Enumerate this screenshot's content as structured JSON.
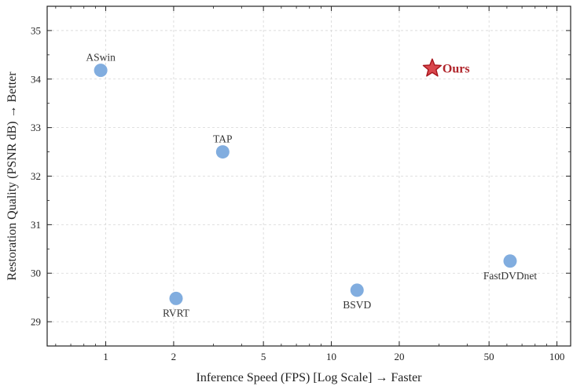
{
  "chart_data": {
    "type": "scatter",
    "title": "",
    "xlabel": "Inference Speed (FPS) [Log Scale]  → Faster",
    "ylabel": "Restoration Quality (PSNR dB)  → Better",
    "xscale": "log",
    "xlim": [
      0.55,
      115
    ],
    "ylim": [
      28.5,
      35.5
    ],
    "xticks": [
      1,
      2,
      5,
      10,
      20,
      50,
      100
    ],
    "xtick_labels": [
      "1",
      "2",
      "5",
      "10",
      "20",
      "50",
      "100"
    ],
    "yticks": [
      29,
      30,
      31,
      32,
      33,
      34,
      35
    ],
    "ytick_labels": [
      "29",
      "30",
      "31",
      "32",
      "33",
      "34",
      "35"
    ],
    "grid": true,
    "points": [
      {
        "name": "ASwin",
        "x": 0.95,
        "y": 34.18,
        "label_pos": "above"
      },
      {
        "name": "TAP",
        "x": 3.3,
        "y": 32.5,
        "label_pos": "above"
      },
      {
        "name": "RVRT",
        "x": 2.05,
        "y": 29.48,
        "label_pos": "below"
      },
      {
        "name": "BSVD",
        "x": 13.0,
        "y": 29.65,
        "label_pos": "below"
      },
      {
        "name": "FastDVDnet",
        "x": 62.0,
        "y": 30.25,
        "label_pos": "below"
      },
      {
        "name": "Ours",
        "x": 28.0,
        "y": 34.22,
        "label_pos": "right",
        "marker": "star",
        "highlight": true
      }
    ],
    "colors": {
      "point": "#7aa9dd",
      "star_fill": "#d9474d",
      "star_stroke": "#a8151c",
      "ours_text": "#b0242a",
      "grid": "#d6d6d6",
      "axis": "#222222"
    }
  }
}
